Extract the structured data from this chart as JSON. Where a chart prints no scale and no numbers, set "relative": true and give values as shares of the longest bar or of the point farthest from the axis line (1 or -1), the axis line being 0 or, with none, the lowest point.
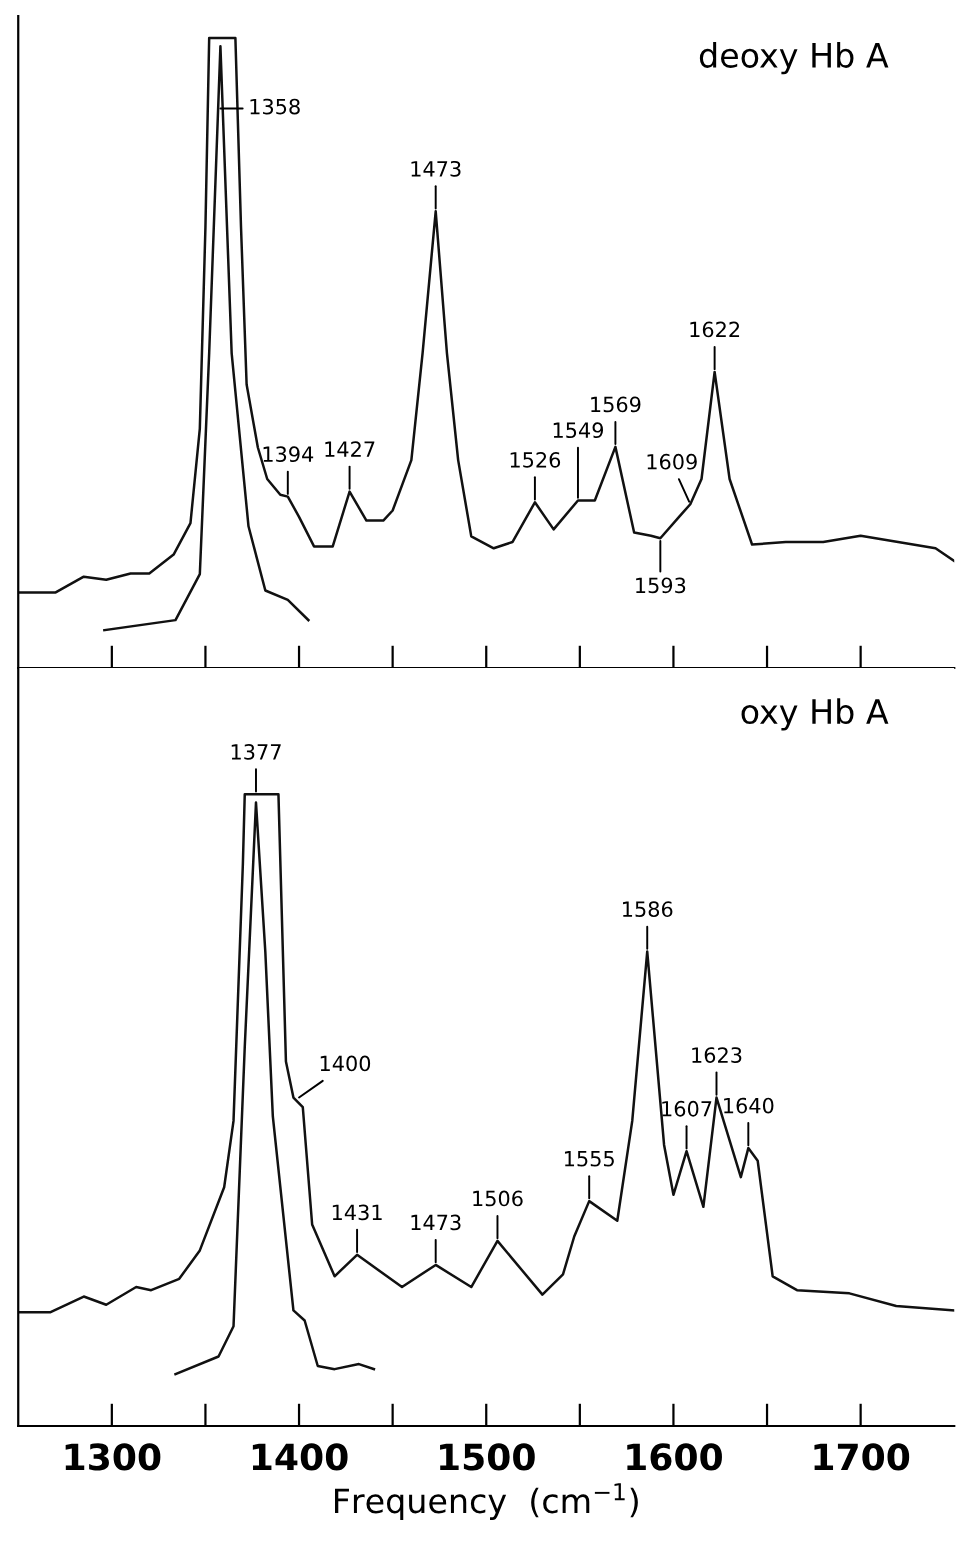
{
  "chart_data": [
    {
      "type": "line",
      "relative": true,
      "tick_labels": false,
      "xlim": [
        1250,
        1750
      ],
      "xticks": [
        {
          "value": 1300,
          "label": null
        },
        {
          "value": 1350,
          "label": null
        },
        {
          "value": 1400,
          "label": null
        },
        {
          "value": 1450,
          "label": null
        },
        {
          "value": 1500,
          "label": null
        },
        {
          "value": 1550,
          "label": null
        },
        {
          "value": 1600,
          "label": null
        },
        {
          "value": 1650,
          "label": null
        },
        {
          "value": 1700,
          "label": null
        }
      ],
      "annotations": [
        "deoxy Hb A",
        {
          "text": "1358",
          "x": 1358,
          "y": 0.987
        },
        {
          "text": "1394",
          "x": 1394,
          "y": 0.272
        },
        {
          "text": "1427",
          "x": 1427,
          "y": 0.28
        },
        {
          "text": "1473",
          "x": 1473,
          "y": 0.725
        },
        {
          "text": "1526",
          "x": 1526,
          "y": 0.263
        },
        {
          "text": "1549",
          "x": 1549,
          "y": 0.266
        },
        {
          "text": "1569",
          "x": 1569,
          "y": 0.351
        },
        {
          "text": "1593",
          "x": 1593,
          "y": 0.206
        },
        {
          "text": "1609",
          "x": 1609,
          "y": 0.26
        },
        {
          "text": "1622",
          "x": 1622,
          "y": 0.47
        }
      ],
      "series": [
        {
          "color": "#111111",
          "x": [
            1250,
            1270,
            1285,
            1297,
            1310,
            1320,
            1333,
            1342,
            1347,
            1350,
            1352,
            1366,
            1369,
            1372,
            1378,
            1383,
            1390,
            1394,
            1400,
            1408,
            1418,
            1427,
            1436,
            1445,
            1450,
            1460,
            1466,
            1473,
            1479,
            1485,
            1492,
            1504,
            1514,
            1526,
            1536,
            1549,
            1558,
            1569,
            1579,
            1588,
            1593,
            1603,
            1609,
            1615,
            1622,
            1630,
            1642,
            1660,
            1680,
            1700,
            1720,
            1740,
            1750
          ],
          "values": [
            0.12,
            0.12,
            0.145,
            0.14,
            0.15,
            0.15,
            0.18,
            0.23,
            0.38,
            0.7,
            1.0,
            1.0,
            0.7,
            0.45,
            0.35,
            0.3,
            0.275,
            0.272,
            0.24,
            0.193,
            0.193,
            0.28,
            0.234,
            0.234,
            0.25,
            0.33,
            0.5,
            0.725,
            0.5,
            0.33,
            0.209,
            0.19,
            0.2,
            0.263,
            0.22,
            0.266,
            0.266,
            0.351,
            0.215,
            0.21,
            0.206,
            0.24,
            0.26,
            0.3,
            0.47,
            0.3,
            0.196,
            0.2,
            0.2,
            0.21,
            0.2,
            0.19,
            0.17
          ]
        },
        {
          "color": "#111111",
          "x": [
            1296,
            1334,
            1347,
            1352,
            1358,
            1364,
            1373,
            1382,
            1394,
            1405
          ],
          "values": [
            0.06,
            0.076,
            0.149,
            0.5,
            0.987,
            0.5,
            0.225,
            0.123,
            0.108,
            0.076
          ]
        }
      ]
    },
    {
      "type": "line",
      "relative": true,
      "tick_labels": "x",
      "xlim": [
        1250,
        1750
      ],
      "xlabel": "Frequency  (cm$^{−1}$)",
      "xticks": [
        1300,
        {
          "value": 1350,
          "label": null
        },
        1400,
        {
          "value": 1450,
          "label": null
        },
        1500,
        {
          "value": 1550,
          "label": null
        },
        1600,
        {
          "value": 1650,
          "label": null
        },
        1700
      ],
      "annotations": [
        "oxy Hb A",
        {
          "text": "1377",
          "x": 1377,
          "y": 1.0
        },
        {
          "text": "1400",
          "x": 1400,
          "y": 0.52
        },
        {
          "text": "1431",
          "x": 1431,
          "y": 0.271
        },
        {
          "text": "1473",
          "x": 1473,
          "y": 0.255
        },
        {
          "text": "1506",
          "x": 1506,
          "y": 0.293
        },
        {
          "text": "1555",
          "x": 1555,
          "y": 0.356
        },
        {
          "text": "1586",
          "x": 1586,
          "y": 0.751
        },
        {
          "text": "1607",
          "x": 1607,
          "y": 0.435
        },
        {
          "text": "1623",
          "x": 1623,
          "y": 0.52
        },
        {
          "text": "1640",
          "x": 1640,
          "y": 0.44
        }
      ],
      "series": [
        {
          "color": "#111111",
          "x": [
            1250,
            1267,
            1285,
            1297,
            1313,
            1321,
            1336,
            1347,
            1360,
            1365,
            1370,
            1371,
            1389,
            1393,
            1397,
            1402,
            1407,
            1419,
            1431,
            1455,
            1473,
            1492,
            1506,
            1530,
            1541,
            1547,
            1555,
            1570,
            1578,
            1586,
            1595,
            1600,
            1607,
            1616,
            1623,
            1636,
            1640,
            1645,
            1653,
            1666,
            1694,
            1719,
            1750
          ],
          "values": [
            0.18,
            0.18,
            0.205,
            0.192,
            0.22,
            0.215,
            0.233,
            0.278,
            0.378,
            0.483,
            0.89,
            1.0,
            1.0,
            0.577,
            0.52,
            0.505,
            0.319,
            0.237,
            0.271,
            0.22,
            0.255,
            0.22,
            0.293,
            0.208,
            0.24,
            0.3,
            0.356,
            0.325,
            0.483,
            0.751,
            0.445,
            0.366,
            0.435,
            0.347,
            0.52,
            0.394,
            0.44,
            0.42,
            0.237,
            0.215,
            0.21,
            0.19,
            0.183
          ]
        },
        {
          "color": "#111111",
          "x": [
            1334,
            1357,
            1365,
            1371,
            1377,
            1382,
            1386,
            1397,
            1403,
            1410,
            1419,
            1432,
            1440
          ],
          "values": [
            0.082,
            0.11,
            0.158,
            0.6,
            0.987,
            0.75,
            0.49,
            0.183,
            0.167,
            0.095,
            0.09,
            0.098,
            0.09
          ]
        }
      ]
    }
  ]
}
